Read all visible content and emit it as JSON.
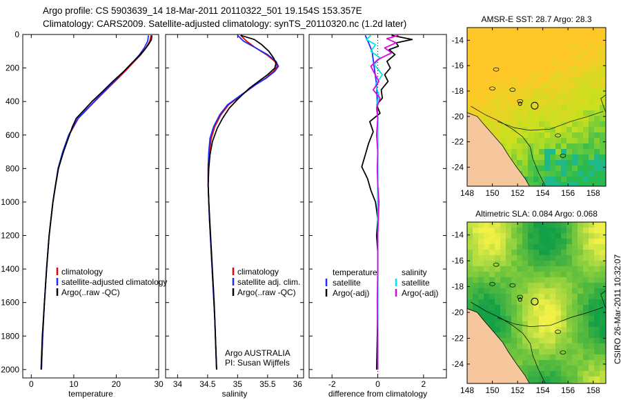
{
  "header": {
    "line1": "Argo profile: CS 5903639_14 18-Mar-2011 20110322_501 19.154S 153.357E",
    "line2": "Climatology: CARS2009. Satellite-adjusted climatology: synTS_20110320.nc (1.2d later)"
  },
  "credit": "CSIRO 26-Mar-2011 10:32:07",
  "colors": {
    "climatology": "#e00000",
    "satellite": "#1a2cff",
    "argo": "#000000",
    "sal_satellite": "#00e5e5",
    "sal_argo": "#e000e0",
    "land": "#f6c79c"
  },
  "chart_data": [
    {
      "type": "line",
      "id": "temperature",
      "xlabel": "temperature",
      "ylabel": "",
      "xlim": [
        -2,
        30
      ],
      "ylim": [
        2050,
        0
      ],
      "xticks": [
        0,
        10,
        20,
        30
      ],
      "yticks": [
        0,
        200,
        400,
        600,
        800,
        1000,
        1200,
        1400,
        1600,
        1800,
        2000
      ],
      "legend": [
        "climatology",
        "satellite-adjusted climatology",
        "Argo(..raw -QC)"
      ],
      "series": [
        {
          "name": "climatology",
          "color": "#e00000",
          "depth": [
            5,
            40,
            80,
            120,
            160,
            200,
            260,
            320,
            380,
            440,
            500,
            600,
            700,
            800,
            1000,
            1200,
            1400,
            1600,
            1800,
            2000
          ],
          "values": [
            28.2,
            27.9,
            27.0,
            25.8,
            24.3,
            22.8,
            20.5,
            18.1,
            15.7,
            13.4,
            11.1,
            8.9,
            7.5,
            6.4,
            5.1,
            4.2,
            3.6,
            3.1,
            2.7,
            2.4
          ]
        },
        {
          "name": "satellite-adjusted climatology",
          "color": "#1a2cff",
          "depth": [
            5,
            40,
            80,
            120,
            160,
            200,
            260,
            320,
            380,
            440,
            500,
            600,
            700,
            800,
            1000,
            1200,
            1400,
            1600,
            1800,
            2000
          ],
          "values": [
            27.6,
            27.4,
            26.6,
            25.5,
            24.1,
            22.6,
            20.3,
            18.0,
            15.6,
            13.3,
            11.0,
            8.8,
            7.4,
            6.3,
            5.1,
            4.2,
            3.6,
            3.1,
            2.7,
            2.4
          ]
        },
        {
          "name": "Argo(..raw -QC)",
          "color": "#000000",
          "depth": [
            5,
            30,
            60,
            100,
            140,
            180,
            220,
            280,
            340,
            400,
            460,
            500,
            550,
            600,
            700,
            800,
            900,
            1000,
            1200,
            1400,
            1600,
            1800,
            2000
          ],
          "values": [
            28.4,
            28.3,
            27.6,
            26.4,
            24.9,
            23.3,
            21.8,
            19.2,
            16.8,
            14.3,
            12.1,
            10.6,
            9.7,
            9.0,
            7.6,
            6.4,
            5.7,
            5.1,
            4.2,
            3.6,
            3.1,
            2.6,
            2.3
          ]
        }
      ]
    },
    {
      "type": "line",
      "id": "salinity",
      "xlabel": "salinity",
      "xlim": [
        33.8,
        36.1
      ],
      "ylim": [
        2050,
        0
      ],
      "xticks": [
        34,
        34.5,
        35,
        35.5,
        36
      ],
      "legend": [
        "climatology",
        "satellite adj. clim.",
        "Argo(..raw -QC)"
      ],
      "annotation": [
        "Argo AUSTRALIA",
        "PI: Susan Wijffels"
      ],
      "series": [
        {
          "name": "climatology",
          "color": "#e00000",
          "depth": [
            5,
            40,
            80,
            120,
            160,
            190,
            220,
            260,
            300,
            360,
            420,
            480,
            550,
            620,
            700,
            780,
            900,
            1100,
            1300,
            1500,
            1700,
            1900,
            2000
          ],
          "values": [
            35.05,
            35.15,
            35.3,
            35.48,
            35.62,
            35.66,
            35.6,
            35.47,
            35.3,
            35.07,
            34.85,
            34.72,
            34.62,
            34.56,
            34.53,
            34.51,
            34.51,
            34.53,
            34.56,
            34.59,
            34.62,
            34.64,
            34.65
          ]
        },
        {
          "name": "satellite adj. clim.",
          "color": "#1a2cff",
          "depth": [
            5,
            40,
            80,
            120,
            160,
            190,
            220,
            260,
            300,
            360,
            420,
            480,
            550,
            620,
            700,
            780,
            900,
            1100,
            1300,
            1500,
            1700,
            1900,
            2000
          ],
          "values": [
            35.0,
            35.1,
            35.3,
            35.5,
            35.64,
            35.68,
            35.62,
            35.48,
            35.3,
            35.06,
            34.83,
            34.7,
            34.6,
            34.54,
            34.52,
            34.51,
            34.51,
            34.53,
            34.56,
            34.59,
            34.62,
            34.64,
            34.65
          ]
        },
        {
          "name": "Argo(..raw -QC)",
          "color": "#000000",
          "depth": [
            5,
            30,
            60,
            100,
            140,
            170,
            200,
            240,
            280,
            320,
            380,
            440,
            500,
            560,
            640,
            720,
            800,
            900,
            1000,
            1200,
            1400,
            1600,
            1800,
            2000
          ],
          "values": [
            35.05,
            35.28,
            35.4,
            35.52,
            35.6,
            35.64,
            35.62,
            35.5,
            35.35,
            35.2,
            35.02,
            34.86,
            34.75,
            34.66,
            34.58,
            34.54,
            34.52,
            34.51,
            34.52,
            34.55,
            34.58,
            34.61,
            34.63,
            34.65
          ]
        }
      ]
    },
    {
      "type": "line",
      "id": "difference",
      "xlabel": "difference from climatology",
      "xlim": [
        -3,
        3
      ],
      "ylim": [
        2050,
        0
      ],
      "xticks": [
        -2,
        0,
        2
      ],
      "legend_left": {
        "title": "temperature",
        "items": [
          "satellite",
          "Argo(-adj)"
        ]
      },
      "legend_right": {
        "title": "salinity",
        "items": [
          "satellite",
          "Argo(-adj)"
        ]
      },
      "series": [
        {
          "name": "temperature satellite",
          "color": "#1a2cff",
          "depth": [
            5,
            50,
            100,
            200,
            300,
            500,
            800,
            1200,
            1600,
            2000
          ],
          "values": [
            -0.55,
            -0.4,
            -0.25,
            -0.15,
            -0.05,
            0.0,
            0.0,
            0.0,
            0.0,
            0.0
          ]
        },
        {
          "name": "temperature Argo(-adj)",
          "color": "#000000",
          "depth": [
            5,
            30,
            50,
            70,
            90,
            120,
            160,
            200,
            240,
            280,
            330,
            380,
            420,
            470,
            520,
            580,
            650,
            720,
            790,
            860,
            930,
            1000,
            1100,
            1200,
            1300,
            1400,
            1600,
            1800,
            2000
          ],
          "values": [
            0.6,
            1.5,
            0.8,
            0.9,
            0.5,
            0.75,
            0.4,
            0.55,
            0.3,
            0.45,
            0.15,
            0.2,
            -0.05,
            0.1,
            -0.35,
            -0.2,
            -0.4,
            -0.55,
            -0.7,
            -0.45,
            -0.3,
            -0.1,
            0.0,
            -0.05,
            0.0,
            0.0,
            0.0,
            -0.02,
            -0.05
          ]
        },
        {
          "name": "salinity satellite",
          "color": "#00e5e5",
          "depth": [
            5,
            30,
            60,
            100,
            140,
            180,
            240,
            300,
            360,
            420,
            500,
            600,
            700,
            800,
            1000,
            1200,
            1400,
            1600,
            1800,
            2000
          ],
          "values": [
            -0.3,
            -0.5,
            -0.1,
            -0.3,
            0.1,
            -0.15,
            0.2,
            -0.1,
            0.05,
            -0.05,
            0.0,
            0.0,
            0.0,
            0.0,
            0.0,
            0.0,
            0.0,
            0.0,
            0.0,
            0.0
          ]
        },
        {
          "name": "salinity Argo(-adj)",
          "color": "#e000e0",
          "depth": [
            5,
            25,
            50,
            80,
            110,
            150,
            190,
            230,
            280,
            330,
            380,
            440,
            500,
            600,
            700,
            800,
            900,
            1000,
            1200,
            1400,
            1600,
            1800,
            2000
          ],
          "values": [
            0.9,
            0.4,
            0.8,
            0.3,
            0.6,
            0.0,
            -0.3,
            -0.15,
            0.05,
            -0.2,
            0.1,
            -0.05,
            0.0,
            -0.05,
            0.0,
            -0.02,
            0.0,
            0.05,
            0.0,
            0.0,
            -0.02,
            0.0,
            0.0
          ]
        }
      ]
    },
    {
      "type": "heatmap",
      "id": "sst-map",
      "title": "AMSR-E SST: 28.7 Argo: 28.3",
      "xlim": [
        148,
        159
      ],
      "ylim": [
        -25.5,
        -13
      ],
      "xticks": [
        148,
        150,
        152,
        154,
        156,
        158
      ],
      "yticks": [
        -14,
        -16,
        -18,
        -20,
        -22,
        -24
      ],
      "argo_position": {
        "lon": 153.357,
        "lat": -19.154
      }
    },
    {
      "type": "heatmap",
      "id": "sla-map",
      "title": "Altimetric SLA: 0.084 Argo: 0.068",
      "xlim": [
        148,
        159
      ],
      "ylim": [
        -25.5,
        -13
      ],
      "xticks": [
        148,
        150,
        152,
        154,
        156,
        158
      ],
      "yticks": [
        -14,
        -16,
        -18,
        -20,
        -22,
        -24
      ],
      "argo_position": {
        "lon": 153.357,
        "lat": -19.154
      }
    }
  ]
}
